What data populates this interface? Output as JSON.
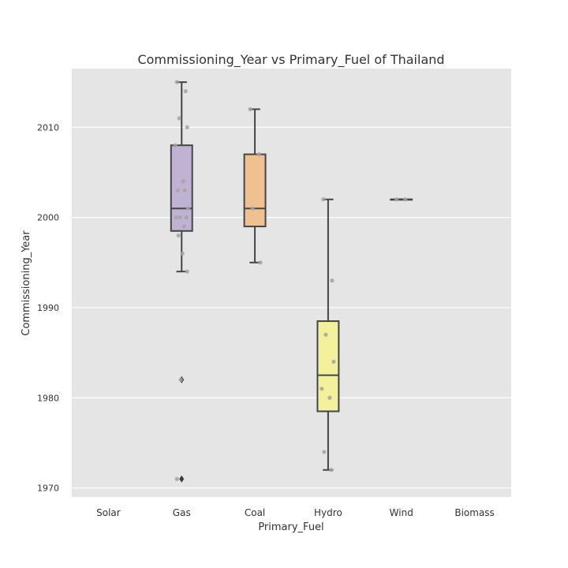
{
  "chart_data": {
    "type": "box",
    "title": "Commissioning_Year vs  Primary_Fuel of Thailand",
    "xlabel": "Primary_Fuel",
    "ylabel": "Commissioning_Year",
    "categories": [
      "Solar",
      "Gas",
      "Coal",
      "Hydro",
      "Wind",
      "Biomass"
    ],
    "ylim": [
      1969,
      2016.5
    ],
    "yticks": [
      1970,
      1980,
      1990,
      2000,
      2010
    ],
    "grid": true,
    "boxes": [
      {
        "category": "Solar",
        "color": null,
        "stats": null,
        "outliers": [],
        "points": []
      },
      {
        "category": "Gas",
        "color": "#bfb2d3",
        "stats": {
          "whislo": 1994,
          "q1": 1998.5,
          "median": 2001,
          "q3": 2008,
          "whishi": 2015
        },
        "outliers": [
          1982,
          1971
        ],
        "points": [
          2015,
          2014,
          2011,
          2010,
          2008,
          2004,
          2003,
          2003,
          2001,
          2000,
          2000,
          2000,
          1999,
          1998,
          1996,
          1994,
          1982,
          1971
        ]
      },
      {
        "category": "Coal",
        "color": "#f0c090",
        "stats": {
          "whislo": 1995,
          "q1": 1999,
          "median": 2001,
          "q3": 2007,
          "whishi": 2012
        },
        "outliers": [],
        "points": [
          2012,
          2007,
          2001,
          1995
        ]
      },
      {
        "category": "Hydro",
        "color": "#f4f19c",
        "stats": {
          "whislo": 1972,
          "q1": 1978.5,
          "median": 1982.5,
          "q3": 1988.5,
          "whishi": 2002
        },
        "outliers": [],
        "points": [
          2002,
          1993,
          1987,
          1984,
          1981,
          1980,
          1974,
          1972
        ]
      },
      {
        "category": "Wind",
        "color": "#a8c8e0",
        "stats": {
          "whislo": 2002,
          "q1": 2002,
          "median": 2002,
          "q3": 2002,
          "whishi": 2002
        },
        "outliers": [],
        "points": [
          2002,
          2002
        ]
      },
      {
        "category": "Biomass",
        "color": null,
        "stats": null,
        "outliers": [],
        "points": []
      }
    ]
  }
}
